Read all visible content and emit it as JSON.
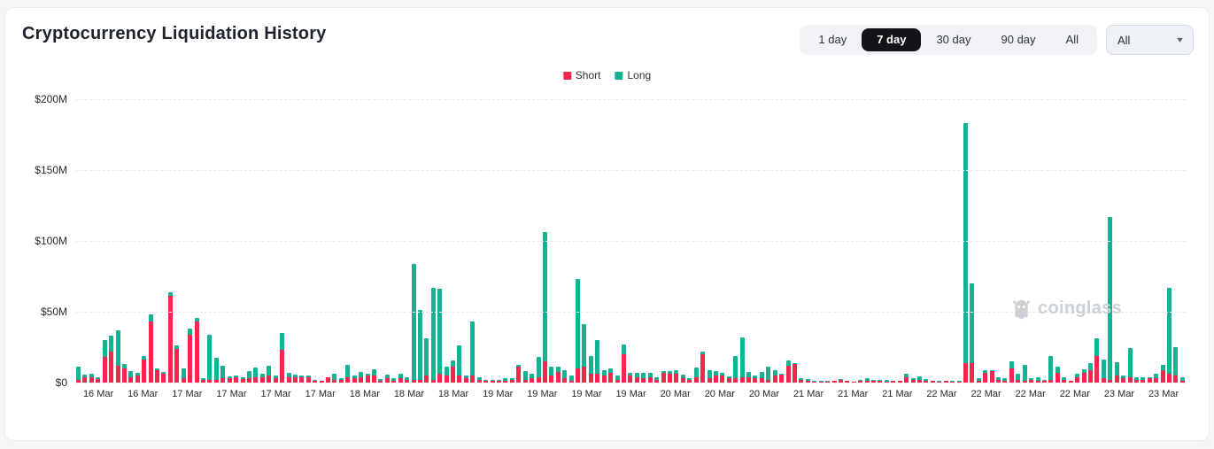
{
  "header": {
    "title": "Cryptocurrency Liquidation History"
  },
  "controls": {
    "ranges": [
      {
        "label": "1 day",
        "selected": false
      },
      {
        "label": "7 day",
        "selected": true
      },
      {
        "label": "30 day",
        "selected": false
      },
      {
        "label": "90 day",
        "selected": false
      },
      {
        "label": "All",
        "selected": false
      }
    ],
    "dropdown": {
      "value": "All",
      "caret": "▾"
    }
  },
  "legend": [
    {
      "label": "Short",
      "color": "#f6274f"
    },
    {
      "label": "Long",
      "color": "#11b392"
    }
  ],
  "watermark": {
    "text": "coinglass"
  },
  "colors": {
    "short": "#f6274f",
    "long": "#11b392",
    "accent_selected": "#141519"
  },
  "chart_data": {
    "type": "bar",
    "stacked": true,
    "unit": "million USD",
    "title": "Cryptocurrency Liquidation History",
    "xlabel": "",
    "ylabel": "",
    "ylim": [
      0,
      200
    ],
    "grid": "dashed-horizontal",
    "legend_position": "top-center",
    "y_ticks": [
      {
        "label": "$200M",
        "value": 200
      },
      {
        "label": "$150M",
        "value": 150
      },
      {
        "label": "$100M",
        "value": 100
      },
      {
        "label": "$50M",
        "value": 50
      },
      {
        "label": "$0",
        "value": 0
      }
    ],
    "x_axis_labels": [
      "16 Mar",
      "16 Mar",
      "17 Mar",
      "17 Mar",
      "17 Mar",
      "17 Mar",
      "18 Mar",
      "18 Mar",
      "18 Mar",
      "19 Mar",
      "19 Mar",
      "19 Mar",
      "19 Mar",
      "20 Mar",
      "20 Mar",
      "20 Mar",
      "21 Mar",
      "21 Mar",
      "21 Mar",
      "22 Mar",
      "22 Mar",
      "22 Mar",
      "22 Mar",
      "23 Mar",
      "23 Mar"
    ],
    "series": [
      {
        "name": "Short",
        "color": "#f6274f",
        "values": [
          2,
          4,
          4,
          2.5,
          18,
          22,
          12,
          10,
          4,
          5,
          16,
          43,
          9,
          6,
          61,
          23.5,
          3,
          34,
          43,
          2,
          2,
          2,
          3,
          3,
          4,
          2.5,
          3,
          4,
          4,
          5,
          3,
          23,
          3.5,
          4,
          4,
          4,
          1.5,
          1,
          3.5,
          2,
          2,
          4,
          3,
          4,
          5,
          5,
          1.5,
          3,
          1.5,
          3,
          2,
          2,
          2,
          5,
          2,
          6,
          5,
          11,
          5,
          3,
          5,
          2,
          1,
          1.5,
          1,
          1,
          2,
          11.5,
          2,
          3,
          4,
          15,
          5,
          7.5,
          3,
          1,
          10,
          11,
          6,
          6,
          5,
          7,
          2,
          20,
          5,
          4,
          3,
          4,
          2,
          7,
          6,
          6,
          3,
          2,
          3.5,
          20,
          3,
          5,
          5,
          3,
          3,
          4,
          3.5,
          3,
          3,
          2,
          5,
          5.5,
          12,
          13,
          2,
          1,
          0.5,
          0.4,
          0.5,
          1,
          2,
          1,
          0.5,
          1,
          1.5,
          1,
          1,
          0.6,
          1,
          1,
          4,
          2,
          2,
          1.5,
          1,
          0.5,
          1,
          0.8,
          0.6,
          14,
          14,
          1,
          7,
          8,
          2,
          1.5,
          10,
          2,
          1,
          2,
          1.5,
          1,
          2,
          7,
          2,
          1,
          4,
          7,
          9,
          19,
          3,
          2,
          5,
          3,
          4,
          2,
          2,
          3,
          3,
          9,
          6,
          5,
          1
        ]
      },
      {
        "name": "Long",
        "color": "#11b392",
        "values": [
          9,
          1.5,
          2.5,
          1.5,
          12,
          11,
          25,
          3,
          4,
          2,
          2.5,
          5,
          1,
          1.5,
          2.5,
          3,
          7,
          4,
          2.5,
          1,
          31.5,
          15.5,
          9,
          1.5,
          1.2,
          1,
          5.2,
          6.5,
          2,
          7,
          2,
          12,
          3.5,
          1.5,
          1,
          1.3,
          0.5,
          0.5,
          0.5,
          4.5,
          1,
          8.5,
          2,
          3.3,
          1.5,
          4.5,
          1,
          2.4,
          1.5,
          3.5,
          2,
          82,
          49,
          26,
          65,
          60,
          6,
          4.5,
          21,
          2,
          38,
          1.5,
          1,
          0.5,
          1,
          2,
          1,
          1,
          6,
          3,
          14,
          91,
          6.5,
          4,
          6,
          4,
          63,
          30,
          12.5,
          24,
          4,
          3,
          3,
          7,
          2,
          3,
          4,
          3,
          2,
          1,
          2,
          3,
          2.5,
          1,
          7,
          2,
          5.5,
          3,
          2,
          1.5,
          16,
          28,
          4,
          2,
          4.5,
          9,
          3.5,
          0.7,
          3.5,
          0.5,
          1,
          1.5,
          0.5,
          0.6,
          0.5,
          0.5,
          0.5,
          0.5,
          0.4,
          1,
          1.5,
          1,
          0.6,
          1,
          0.5,
          0.4,
          2.5,
          1,
          2.6,
          1,
          0.5,
          0.5,
          0.4,
          0.5,
          0.4,
          169,
          56,
          2,
          2,
          1,
          2,
          1.5,
          5,
          4.5,
          11.5,
          1,
          2,
          1,
          16.5,
          4.5,
          1.5,
          0.5,
          2,
          2.5,
          5,
          12,
          13,
          115,
          9.5,
          2,
          20.5,
          2,
          2,
          1,
          3,
          3.5,
          61,
          20,
          2.5
        ]
      }
    ]
  }
}
